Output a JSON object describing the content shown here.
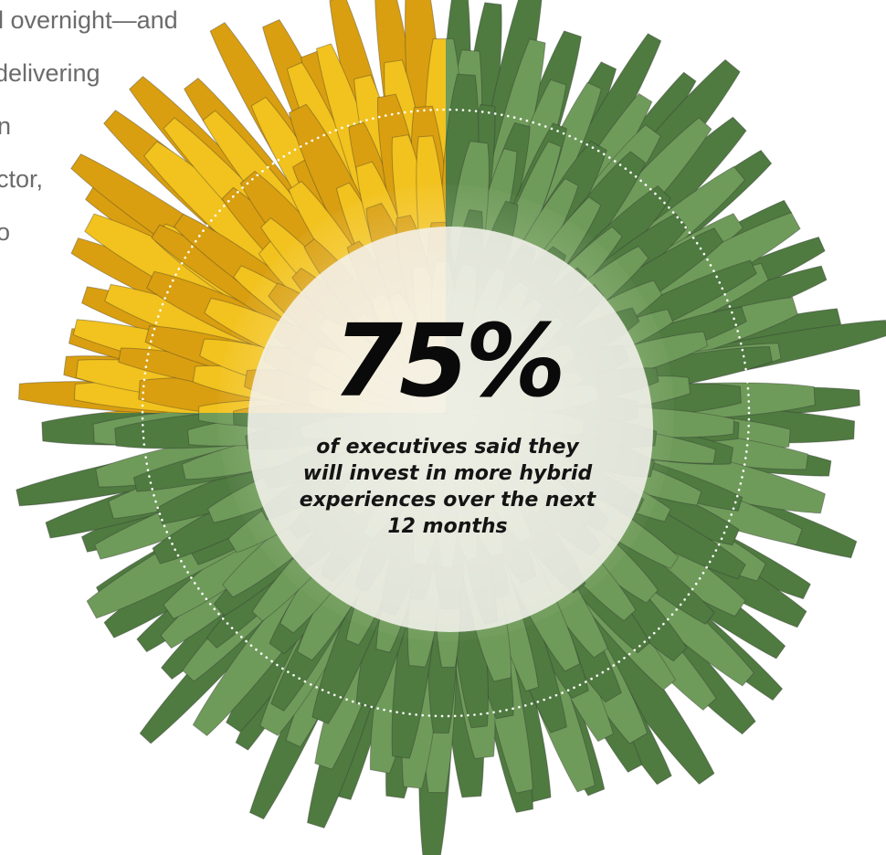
{
  "body_text": {
    "lines": [
      "l overnight—and",
      "delivering",
      "n",
      "ctor,",
      "o"
    ]
  },
  "colors": {
    "petal_yellow": "#f2c21e",
    "petal_yellow_dark": "#d99f10",
    "petal_green": "#6f9b5a",
    "petal_green_dark": "#4f7a40",
    "center_disc": "#f4f1ec",
    "text_gray": "#6b6b6b"
  },
  "stat": {
    "value": "75%",
    "caption_lines": [
      "of executives said they",
      "will invest in more hybrid",
      "experiences over the next",
      "12 months"
    ]
  },
  "icons": {
    "flower": "dandelion-flower-icon",
    "ring": "dotted-ring"
  }
}
